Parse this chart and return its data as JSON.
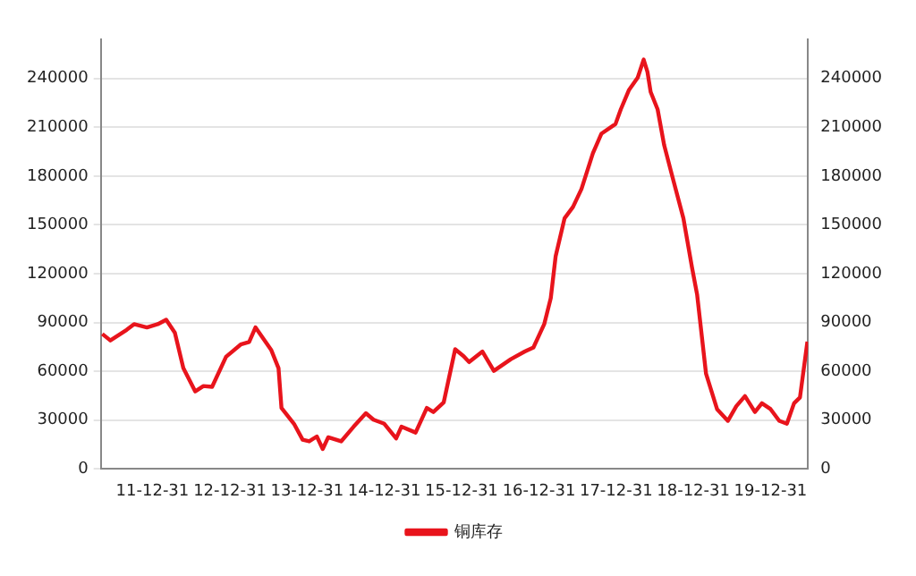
{
  "chart_data": {
    "type": "line",
    "legend": "bottom",
    "grid": "y",
    "marker": "none",
    "line_style": "solid",
    "xlim": [
      "2011-05-01",
      "2020-06-25"
    ],
    "xticks": [
      {
        "value": "2011-12-31",
        "label": "11-12-31"
      },
      {
        "value": "2012-12-31",
        "label": "12-12-31"
      },
      {
        "value": "2013-12-31",
        "label": "13-12-31"
      },
      {
        "value": "2014-12-31",
        "label": "14-12-31"
      },
      {
        "value": "2015-12-31",
        "label": "15-12-31"
      },
      {
        "value": "2016-12-31",
        "label": "16-12-31"
      },
      {
        "value": "2017-12-31",
        "label": "17-12-31"
      },
      {
        "value": "2018-12-31",
        "label": "18-12-31"
      },
      {
        "value": "2019-12-31",
        "label": "19-12-31"
      }
    ],
    "ylim": [
      0,
      264000
    ],
    "yticks": [
      0,
      30000,
      60000,
      90000,
      120000,
      150000,
      180000,
      210000,
      240000
    ],
    "y2lim": [
      0,
      264000
    ],
    "y2ticks": [
      0,
      30000,
      60000,
      90000,
      120000,
      150000,
      180000,
      210000,
      240000
    ],
    "series": [
      {
        "name": "铜库存",
        "color": "#e8141c",
        "x": [
          "2011-05-08",
          "2011-06-15",
          "2011-08-31",
          "2011-10-05",
          "2011-12-05",
          "2012-01-25",
          "2012-03-05",
          "2012-04-15",
          "2012-05-25",
          "2012-07-20",
          "2012-08-28",
          "2012-10-08",
          "2012-12-13",
          "2013-02-20",
          "2013-04-01",
          "2013-05-01",
          "2013-07-15",
          "2013-08-18",
          "2013-09-01",
          "2013-10-30",
          "2013-12-10",
          "2014-01-10",
          "2014-02-15",
          "2014-03-15",
          "2014-04-10",
          "2014-06-10",
          "2014-08-08",
          "2014-10-05",
          "2014-11-10",
          "2014-12-31",
          "2015-02-25",
          "2015-03-22",
          "2015-05-28",
          "2015-07-20",
          "2015-08-20",
          "2015-10-08",
          "2015-12-01",
          "2016-01-10",
          "2016-02-05",
          "2016-04-08",
          "2016-06-01",
          "2016-08-20",
          "2016-10-25",
          "2016-12-05",
          "2017-01-25",
          "2017-02-25",
          "2017-03-20",
          "2017-05-01",
          "2017-06-10",
          "2017-07-20",
          "2017-09-12",
          "2017-10-22",
          "2017-12-28",
          "2018-01-22",
          "2018-03-02",
          "2018-04-12",
          "2018-05-10",
          "2018-05-28",
          "2018-06-12",
          "2018-07-15",
          "2018-08-15",
          "2018-09-20",
          "2018-11-14",
          "2018-12-25",
          "2019-01-18",
          "2019-03-01",
          "2019-04-22",
          "2019-06-12",
          "2019-07-22",
          "2019-09-01",
          "2019-10-18",
          "2019-11-20",
          "2019-12-31",
          "2020-02-10",
          "2020-03-17",
          "2020-04-20",
          "2020-05-18",
          "2020-06-22"
        ],
        "values": [
          83000,
          79000,
          85500,
          89000,
          87000,
          89000,
          91700,
          83800,
          62000,
          47700,
          51000,
          50500,
          69000,
          76500,
          78000,
          87000,
          73000,
          62000,
          37500,
          27800,
          18000,
          17000,
          20000,
          12300,
          19500,
          17000,
          26000,
          34300,
          30300,
          27800,
          18800,
          26000,
          22400,
          37500,
          35000,
          41000,
          73600,
          69300,
          65700,
          72200,
          60300,
          67500,
          72200,
          74700,
          89000,
          105000,
          130700,
          154000,
          161000,
          172000,
          194000,
          206000,
          212000,
          221000,
          233000,
          240500,
          251600,
          244000,
          231700,
          221000,
          199000,
          181000,
          154000,
          123500,
          107000,
          58500,
          36800,
          29600,
          38600,
          44800,
          35000,
          40400,
          36800,
          29600,
          27800,
          40400,
          44000,
          78300
        ]
      }
    ]
  }
}
